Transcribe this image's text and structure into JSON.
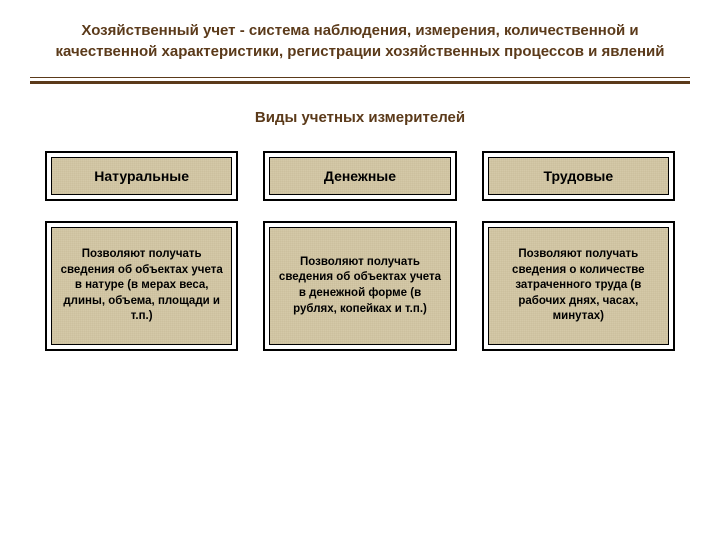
{
  "title": "Хозяйственный учет - система наблюдения, измерения, количественной и качественной характеристики, регистрации хозяйственных процессов и явлений",
  "subtitle": "Виды учетных измерителей",
  "columns": [
    {
      "header": "Натуральные",
      "description": "Позволяют получать сведения об объектах учета в натуре (в мерах веса, длины, объема, площади и т.п.)"
    },
    {
      "header": "Денежные",
      "description": "Позволяют получать сведения об объектах учета в денежной форме (в рублях, копейках и т.п.)"
    },
    {
      "header": "Трудовые",
      "description": "Позволяют получать сведения о количестве затраченного труда (в рабочих днях, часах, минутах)"
    }
  ],
  "style": {
    "title_color": "#5b3a1a",
    "title_fontsize": 15,
    "subtitle_fontsize": 15,
    "box_bg": "#d4c9a8",
    "box_border": "#000000",
    "body_bg": "#ffffff",
    "header_fontsize": 14,
    "desc_fontsize": 11.5
  }
}
